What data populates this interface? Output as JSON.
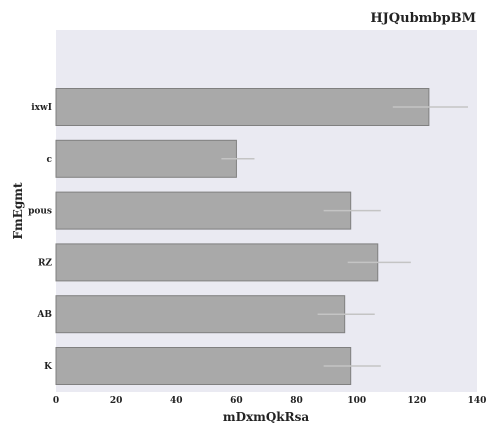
{
  "chart_data": {
    "type": "bar",
    "orientation": "horizontal",
    "title": "HJQubmbpBM",
    "xlabel": "mDxmQkRsa",
    "ylabel": "FmEgmt",
    "categories": [
      "ixwI",
      "c",
      "pous",
      "RZ",
      "AB",
      "K"
    ],
    "values": [
      124,
      60,
      98,
      107,
      96,
      98
    ],
    "error_low": [
      112,
      55,
      89,
      97,
      87,
      89
    ],
    "error_high": [
      137,
      66,
      108,
      118,
      106,
      108
    ],
    "xlim": [
      0,
      140
    ],
    "xticks": [
      0,
      20,
      40,
      60,
      80,
      100,
      120,
      140
    ],
    "grid": false,
    "legend": "none",
    "colors": {
      "bar_fill": "#a9a9a9",
      "bar_stroke": "#808080",
      "error_bar": "#c4c4c4",
      "plot_background": "#eaeaf2",
      "text": "#222222"
    }
  }
}
